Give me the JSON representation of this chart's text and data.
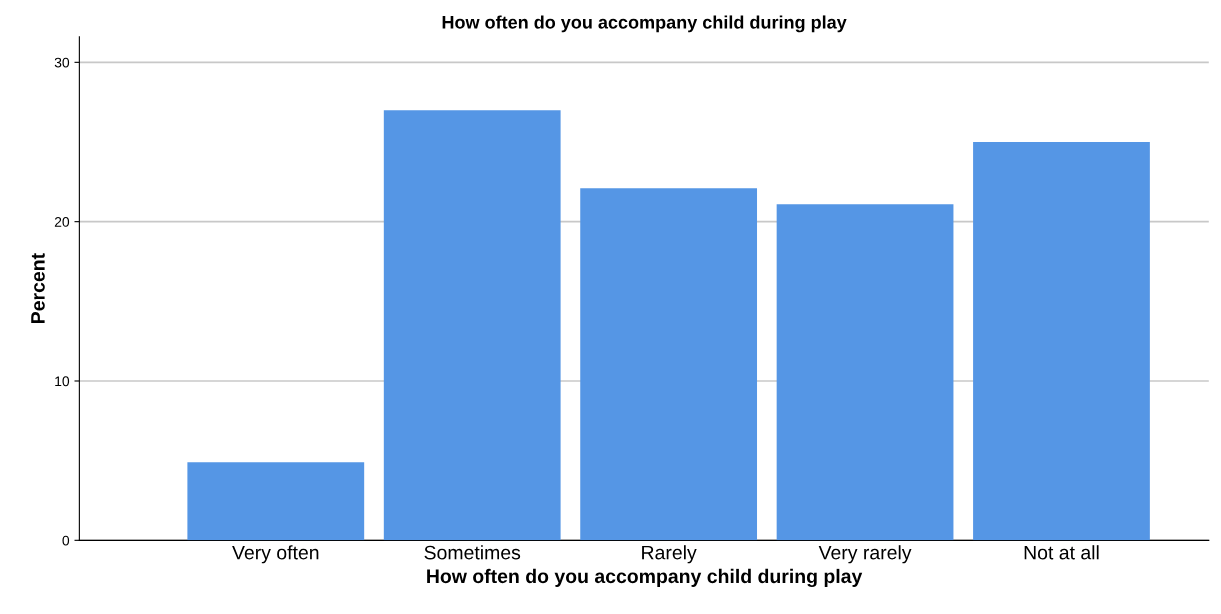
{
  "chart_data": {
    "type": "bar",
    "title": "How often do you accompany child during play",
    "xlabel": "How often do you accompany child during play",
    "ylabel": "Percent",
    "categories": [
      "Very often",
      "Sometimes",
      "Rarely",
      "Very rarely",
      "Not at all"
    ],
    "values": [
      4.9,
      27.0,
      22.1,
      21.1,
      25.0
    ],
    "color": "#5596e5",
    "ylim": [
      0,
      31.6
    ],
    "yticks": [
      0,
      10,
      20,
      30
    ],
    "grid": "y"
  }
}
